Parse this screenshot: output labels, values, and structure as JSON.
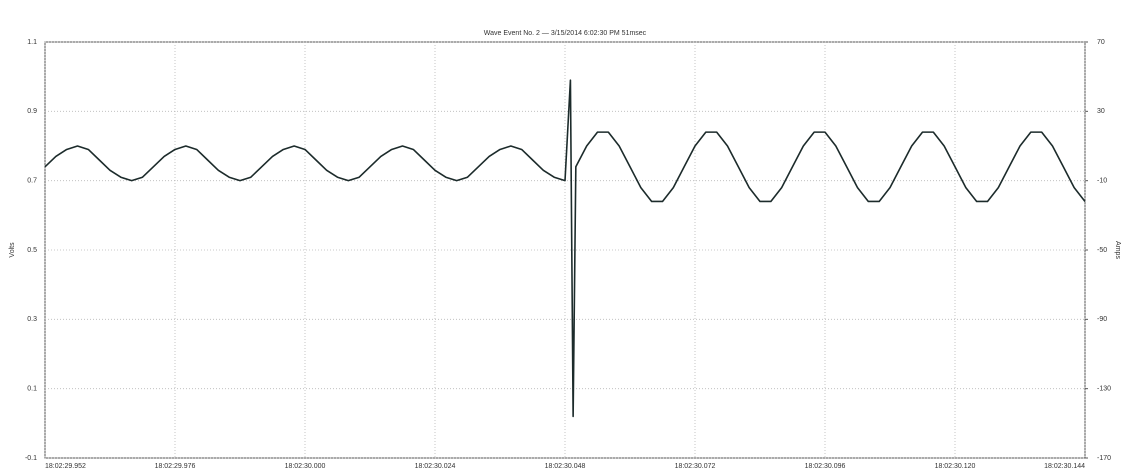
{
  "chart_data": {
    "type": "line",
    "title": "Wave Event No. 2 — 3/15/2014 6:02:30 PM 51msec",
    "y_label": "Volts",
    "y2_label": "Amps",
    "grid": true,
    "xlim": [
      29.952,
      30.144
    ],
    "xticks": [
      {
        "value": 29.952,
        "label": "18:02:29.952"
      },
      {
        "value": 29.976,
        "label": "18:02:29.976"
      },
      {
        "value": 30.0,
        "label": "18:02:30.000"
      },
      {
        "value": 30.024,
        "label": "18:02:30.024"
      },
      {
        "value": 30.048,
        "label": "18:02:30.048"
      },
      {
        "value": 30.072,
        "label": "18:02:30.072"
      },
      {
        "value": 30.096,
        "label": "18:02:30.096"
      },
      {
        "value": 30.12,
        "label": "18:02:30.120"
      },
      {
        "value": 30.144,
        "label": "18:02:30.144"
      }
    ],
    "ylim": [
      -0.1,
      1.1
    ],
    "yticks": [
      -0.1,
      0.1,
      0.3,
      0.5,
      0.7,
      0.9,
      1.1
    ],
    "y2lim": [
      -170,
      70
    ],
    "y2ticks": [
      -170,
      -130,
      -90,
      -50,
      -10,
      30,
      70
    ],
    "x": [
      29.952,
      29.954,
      29.956,
      29.958,
      29.96,
      29.962,
      29.964,
      29.966,
      29.968,
      29.97,
      29.972,
      29.974,
      29.976,
      29.978,
      29.98,
      29.982,
      29.984,
      29.986,
      29.988,
      29.99,
      29.992,
      29.994,
      29.996,
      29.998,
      30.0,
      30.002,
      30.004,
      30.006,
      30.008,
      30.01,
      30.012,
      30.014,
      30.016,
      30.018,
      30.02,
      30.022,
      30.024,
      30.026,
      30.028,
      30.03,
      30.032,
      30.034,
      30.036,
      30.038,
      30.04,
      30.042,
      30.044,
      30.046,
      30.048,
      30.049,
      30.0495,
      30.05,
      30.052,
      30.054,
      30.056,
      30.058,
      30.06,
      30.062,
      30.064,
      30.066,
      30.068,
      30.07,
      30.072,
      30.074,
      30.076,
      30.078,
      30.08,
      30.082,
      30.084,
      30.086,
      30.088,
      30.09,
      30.092,
      30.094,
      30.096,
      30.098,
      30.1,
      30.102,
      30.104,
      30.106,
      30.108,
      30.11,
      30.112,
      30.114,
      30.116,
      30.118,
      30.12,
      30.122,
      30.124,
      30.126,
      30.128,
      30.13,
      30.132,
      30.134,
      30.136,
      30.138,
      30.14,
      30.142,
      30.144
    ],
    "series": [
      {
        "color": "#1c2b2b",
        "values": [
          0.74,
          0.77,
          0.79,
          0.8,
          0.79,
          0.76,
          0.73,
          0.71,
          0.7,
          0.71,
          0.74,
          0.77,
          0.79,
          0.8,
          0.79,
          0.76,
          0.73,
          0.71,
          0.7,
          0.71,
          0.74,
          0.77,
          0.79,
          0.8,
          0.79,
          0.76,
          0.73,
          0.71,
          0.7,
          0.71,
          0.74,
          0.77,
          0.79,
          0.8,
          0.79,
          0.76,
          0.73,
          0.71,
          0.7,
          0.71,
          0.74,
          0.77,
          0.79,
          0.8,
          0.79,
          0.76,
          0.73,
          0.71,
          0.7,
          0.99,
          0.02,
          0.74,
          0.8,
          0.84,
          0.84,
          0.8,
          0.74,
          0.68,
          0.64,
          0.64,
          0.68,
          0.74,
          0.8,
          0.84,
          0.84,
          0.8,
          0.74,
          0.68,
          0.64,
          0.64,
          0.68,
          0.74,
          0.8,
          0.84,
          0.84,
          0.8,
          0.74,
          0.68,
          0.64,
          0.64,
          0.68,
          0.74,
          0.8,
          0.84,
          0.84,
          0.8,
          0.74,
          0.68,
          0.64,
          0.64,
          0.68,
          0.74,
          0.8,
          0.84,
          0.84,
          0.8,
          0.74,
          0.68,
          0.64
        ]
      }
    ]
  }
}
